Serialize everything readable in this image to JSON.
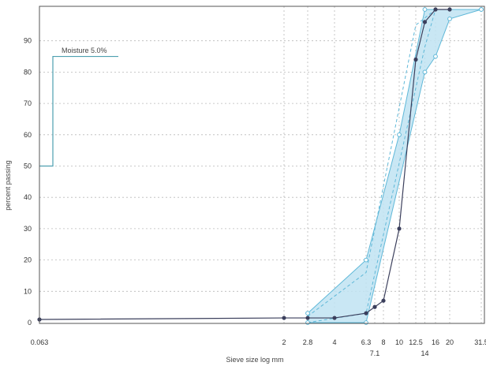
{
  "chart_data": {
    "type": "line",
    "title": "",
    "xlabel": "Sieve size log mm",
    "ylabel": "percent passing",
    "x_scale": "log",
    "ylim": [
      0,
      100
    ],
    "y_ticks": [
      0,
      10,
      20,
      30,
      40,
      50,
      60,
      70,
      80,
      90
    ],
    "x_ticks_upper": [
      {
        "value": 0.063,
        "label": "0.063"
      },
      {
        "value": 2,
        "label": "2"
      },
      {
        "value": 2.8,
        "label": "2.8"
      },
      {
        "value": 4,
        "label": "4"
      },
      {
        "value": 6.3,
        "label": "6.3"
      },
      {
        "value": 8,
        "label": "8"
      },
      {
        "value": 10,
        "label": "10"
      },
      {
        "value": 12.5,
        "label": "12.5"
      },
      {
        "value": 16,
        "label": "16"
      },
      {
        "value": 20,
        "label": "20"
      },
      {
        "value": 31.5,
        "label": "31.5"
      }
    ],
    "x_ticks_lower": [
      {
        "value": 7.1,
        "label": "7.1"
      },
      {
        "value": 14,
        "label": "14"
      }
    ],
    "annotation": "Moisture 5.0%",
    "moisture_marker": {
      "value": 5.0,
      "level": 85
    },
    "envelope": {
      "lower": [
        {
          "x": 2.8,
          "y": 0
        },
        {
          "x": 6.3,
          "y": 0
        },
        {
          "x": 14,
          "y": 80
        },
        {
          "x": 16,
          "y": 85
        },
        {
          "x": 20,
          "y": 97
        },
        {
          "x": 31.5,
          "y": 100
        }
      ],
      "upper": [
        {
          "x": 2.8,
          "y": 3
        },
        {
          "x": 6.3,
          "y": 20
        },
        {
          "x": 10,
          "y": 60
        },
        {
          "x": 14,
          "y": 100
        },
        {
          "x": 31.5,
          "y": 100
        }
      ],
      "inner_lower": [
        {
          "x": 2.8,
          "y": 0
        },
        {
          "x": 6.3,
          "y": 3
        },
        {
          "x": 14,
          "y": 88
        },
        {
          "x": 16,
          "y": 100
        }
      ],
      "inner_upper": [
        {
          "x": 2.8,
          "y": 2
        },
        {
          "x": 6.3,
          "y": 16
        },
        {
          "x": 12.5,
          "y": 95
        },
        {
          "x": 16,
          "y": 100
        }
      ]
    },
    "series": [
      {
        "points": [
          {
            "x": 0.063,
            "y": 1
          },
          {
            "x": 2,
            "y": 1.5
          },
          {
            "x": 2.8,
            "y": 1.5
          },
          {
            "x": 4,
            "y": 1.5
          },
          {
            "x": 6.3,
            "y": 3
          },
          {
            "x": 7.1,
            "y": 5
          },
          {
            "x": 8,
            "y": 7
          },
          {
            "x": 10,
            "y": 30
          },
          {
            "x": 12.5,
            "y": 84
          },
          {
            "x": 14,
            "y": 96
          },
          {
            "x": 16,
            "y": 100
          },
          {
            "x": 20,
            "y": 100
          }
        ]
      }
    ],
    "colors": {
      "line": "#3b3f5c",
      "envelope_fill": "#bfe3f2",
      "envelope_stroke": "#5fb8d8",
      "marker": "#4e9fb0"
    }
  }
}
